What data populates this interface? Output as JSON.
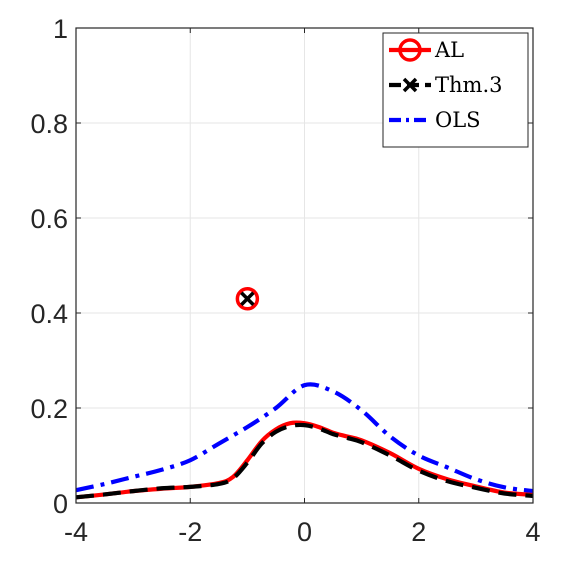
{
  "chart_data": {
    "type": "line",
    "title": "",
    "xlabel": "",
    "ylabel": "",
    "xlim": [
      -4,
      4
    ],
    "ylim": [
      0,
      1
    ],
    "x_ticks": [
      -4,
      -2,
      0,
      2,
      4
    ],
    "y_ticks": [
      0,
      0.2,
      0.4,
      0.6,
      0.8,
      1
    ],
    "x_tick_labels": [
      "-4",
      "-2",
      "0",
      "2",
      "4"
    ],
    "y_tick_labels": [
      "0",
      "0.2",
      "0.4",
      "0.6",
      "0.8",
      "1"
    ],
    "grid": true,
    "legend_position": "top-right",
    "series": [
      {
        "name": "AL",
        "color": "#ff0000",
        "line_style": "solid",
        "marker": "circle",
        "x": [
          -4,
          -3.5,
          -3,
          -2.5,
          -2,
          -1.5,
          -1.25,
          -1,
          -0.75,
          -0.5,
          -0.25,
          0,
          0.25,
          0.5,
          0.75,
          1,
          1.5,
          2,
          2.5,
          3,
          3.5,
          4
        ],
        "y": [
          0.012,
          0.018,
          0.025,
          0.03,
          0.034,
          0.042,
          0.055,
          0.09,
          0.13,
          0.155,
          0.168,
          0.168,
          0.16,
          0.148,
          0.14,
          0.132,
          0.105,
          0.072,
          0.05,
          0.035,
          0.022,
          0.017
        ]
      },
      {
        "name": "Thm.3",
        "color": "#000000",
        "line_style": "dashed",
        "marker": "x",
        "x": [
          -4,
          -3.5,
          -3,
          -2.5,
          -2,
          -1.5,
          -1.25,
          -1,
          -0.75,
          -0.5,
          -0.25,
          0,
          0.25,
          0.5,
          0.75,
          1,
          1.5,
          2,
          2.5,
          3,
          3.5,
          4
        ],
        "y": [
          0.012,
          0.018,
          0.025,
          0.031,
          0.034,
          0.04,
          0.052,
          0.085,
          0.125,
          0.15,
          0.162,
          0.164,
          0.157,
          0.145,
          0.137,
          0.128,
          0.1,
          0.068,
          0.046,
          0.032,
          0.02,
          0.015
        ]
      },
      {
        "name": "OLS",
        "color": "#0000ff",
        "line_style": "dash-dot",
        "marker": "none",
        "x": [
          -4,
          -3.5,
          -3,
          -2.5,
          -2,
          -1.5,
          -1,
          -0.5,
          0,
          0.5,
          1,
          1.5,
          2,
          2.5,
          3,
          3.5,
          4
        ],
        "y": [
          0.027,
          0.04,
          0.055,
          0.07,
          0.09,
          0.125,
          0.16,
          0.2,
          0.248,
          0.235,
          0.195,
          0.14,
          0.1,
          0.075,
          0.05,
          0.033,
          0.025
        ]
      }
    ],
    "points": [
      {
        "series": "AL",
        "x": -1,
        "y": 0.43,
        "marker": "circle",
        "color": "#ff0000"
      },
      {
        "series": "Thm.3",
        "x": -1,
        "y": 0.43,
        "marker": "x",
        "color": "#000000"
      }
    ]
  }
}
